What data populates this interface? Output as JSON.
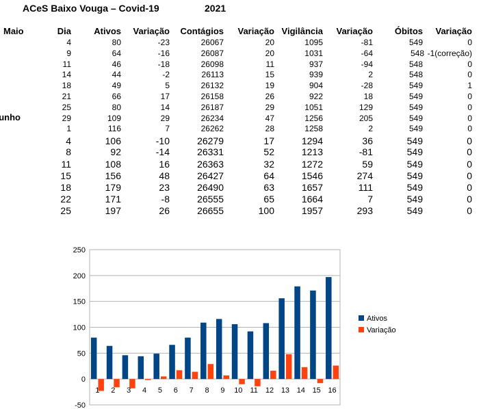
{
  "sheet": {
    "title": "ACeS Baixo Vouga –  Covid-19",
    "year": "2021",
    "headers": [
      "Dia",
      "Ativos",
      "Variação",
      "Contágios",
      "Variação",
      "Vigilância",
      "Variação",
      "Óbitos",
      "Variação"
    ],
    "rows": [
      {
        "month": "Maio",
        "cells": [
          "4",
          "80",
          "-23",
          "26067",
          "20",
          "1095",
          "-81",
          "549",
          "0"
        ]
      },
      {
        "month": "",
        "cells": [
          "9",
          "64",
          "-16",
          "26087",
          "20",
          "1031",
          "-64",
          "548",
          "-1(correção)"
        ]
      },
      {
        "month": "",
        "cells": [
          "11",
          "46",
          "-18",
          "26098",
          "11",
          "937",
          "-94",
          "548",
          "0"
        ]
      },
      {
        "month": "",
        "cells": [
          "14",
          "44",
          "-2",
          "26113",
          "15",
          "939",
          "2",
          "548",
          "0"
        ]
      },
      {
        "month": "",
        "cells": [
          "18",
          "49",
          "5",
          "26132",
          "19",
          "904",
          "-28",
          "549",
          "1"
        ]
      },
      {
        "month": "",
        "cells": [
          "21",
          "66",
          "17",
          "26158",
          "26",
          "922",
          "18",
          "549",
          "0"
        ]
      },
      {
        "month": "",
        "cells": [
          "25",
          "80",
          "14",
          "26187",
          "29",
          "1051",
          "129",
          "549",
          "0"
        ]
      },
      {
        "month": "",
        "cells": [
          "29",
          "109",
          "29",
          "26234",
          "47",
          "1256",
          "205",
          "549",
          "0"
        ]
      },
      {
        "month": "Junho",
        "cells": [
          "1",
          "116",
          "7",
          "26262",
          "28",
          "1258",
          "2",
          "549",
          "0"
        ]
      },
      {
        "month": "",
        "cells": [
          "4",
          "106",
          "-10",
          "26279",
          "17",
          "1294",
          "36",
          "549",
          "0"
        ]
      },
      {
        "month": "",
        "cells": [
          "8",
          "92",
          "-14",
          "26331",
          "52",
          "1213",
          "-81",
          "549",
          "0"
        ]
      },
      {
        "month": "",
        "cells": [
          "11",
          "108",
          "16",
          "26363",
          "32",
          "1272",
          "59",
          "549",
          "0"
        ]
      },
      {
        "month": "",
        "cells": [
          "15",
          "156",
          "48",
          "26427",
          "64",
          "1546",
          "274",
          "549",
          "0"
        ]
      },
      {
        "month": "",
        "cells": [
          "18",
          "179",
          "23",
          "26490",
          "63",
          "1657",
          "111",
          "549",
          "0"
        ]
      },
      {
        "month": "",
        "cells": [
          "22",
          "171",
          "-8",
          "26555",
          "65",
          "1664",
          "7",
          "549",
          "0"
        ]
      },
      {
        "month": "",
        "cells": [
          "25",
          "197",
          "26",
          "26655",
          "100",
          "1957",
          "293",
          "549",
          "0"
        ]
      }
    ]
  },
  "chart_data": {
    "type": "bar",
    "categories": [
      "1",
      "2",
      "3",
      "4",
      "5",
      "6",
      "7",
      "8",
      "9",
      "10",
      "11",
      "12",
      "13",
      "14",
      "15",
      "16"
    ],
    "series": [
      {
        "name": "Ativos",
        "color": "#004586",
        "values": [
          80,
          64,
          46,
          44,
          49,
          66,
          80,
          109,
          116,
          106,
          92,
          108,
          156,
          179,
          171,
          197
        ]
      },
      {
        "name": "Variação",
        "color": "#ff420e",
        "values": [
          -23,
          -16,
          -18,
          -2,
          5,
          17,
          14,
          29,
          7,
          -10,
          -14,
          16,
          48,
          23,
          -8,
          26
        ]
      }
    ],
    "ylim": [
      -50,
      250
    ],
    "yticks": [
      "250",
      "200",
      "150",
      "100",
      "50",
      "0",
      "-50"
    ],
    "grid": true,
    "legend": "right"
  }
}
